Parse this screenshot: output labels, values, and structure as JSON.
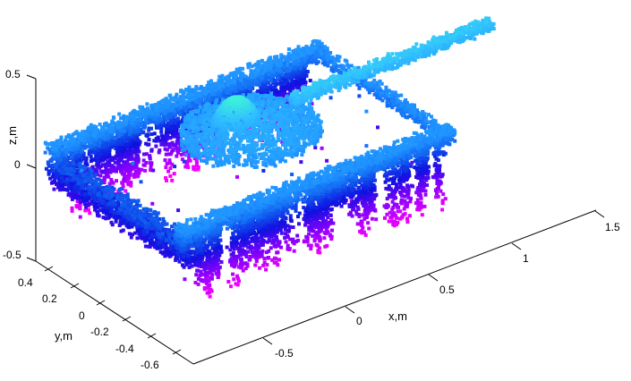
{
  "chart_data": {
    "type": "scatter3d",
    "title": "",
    "xlabel": "x,m",
    "ylabel": "y,m",
    "zlabel": "z,m",
    "x_ticks": [
      "-0.5",
      "0",
      "0.5",
      "1",
      "1.5"
    ],
    "y_ticks": [
      "0.4",
      "0.2",
      "0",
      "-0.2",
      "-0.4",
      "-0.6"
    ],
    "z_ticks": [
      "0.5",
      "0",
      "-0.5"
    ],
    "xlim": [
      -0.92,
      1.5
    ],
    "ylim": [
      -0.76,
      0.49
    ],
    "zlim": [
      -0.5,
      0.5
    ],
    "grid": false,
    "colormap_by_z": [
      "#ff00ff",
      "#8a00ff",
      "#1010e0",
      "#1060f0",
      "#1e90ff",
      "#30c0ff",
      "#40ffd0"
    ],
    "components": {
      "hull": {
        "x": [
          -0.84,
          0.8
        ],
        "y": [
          -0.58,
          0.53
        ],
        "z": [
          -0.1,
          0.12
        ]
      },
      "track_skirts": {
        "z": [
          -0.35,
          0.08
        ]
      },
      "turret": {
        "center": [
          0.0,
          0.0
        ],
        "z": [
          0.1,
          0.3
        ]
      },
      "barrel": {
        "x": [
          0.25,
          1.45
        ],
        "y": [
          -0.03,
          0.03
        ],
        "z": [
          0.18,
          0.24
        ]
      }
    }
  }
}
